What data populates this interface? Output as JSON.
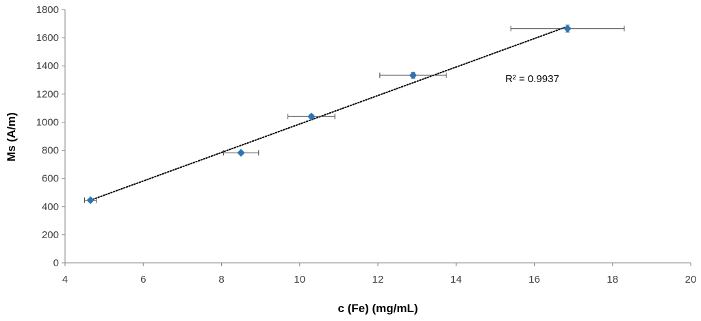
{
  "chart_data": {
    "type": "scatter",
    "xlabel": "c (Fe) (mg/mL)",
    "ylabel": "Ms (A/m)",
    "xlim": [
      4,
      20
    ],
    "ylim": [
      0,
      1800
    ],
    "xticks": [
      "4",
      "6",
      "8",
      "10",
      "12",
      "14",
      "16",
      "18",
      "20"
    ],
    "yticks": [
      "0",
      "200",
      "400",
      "600",
      "800",
      "1000",
      "1200",
      "1400",
      "1600",
      "1800"
    ],
    "grid": false,
    "series": [
      {
        "points": [
          {
            "x": 4.65,
            "y": 445,
            "xerr": 0.15,
            "yerr": 10
          },
          {
            "x": 8.5,
            "y": 782,
            "xerr": 0.45,
            "yerr": 12
          },
          {
            "x": 10.3,
            "y": 1040,
            "xerr": 0.6,
            "yerr": 15
          },
          {
            "x": 12.9,
            "y": 1333,
            "xerr": 0.85,
            "yerr": 20
          },
          {
            "x": 16.85,
            "y": 1665,
            "xerr": 1.45,
            "yerr": 25
          }
        ],
        "color": "#2e75b6"
      }
    ],
    "trendline": {
      "type": "linear",
      "style": "dotted",
      "from": {
        "x": 4.65,
        "y": 445
      },
      "to": {
        "x": 16.85,
        "y": 1680
      },
      "r2_label": "R² = 0.9937"
    }
  }
}
